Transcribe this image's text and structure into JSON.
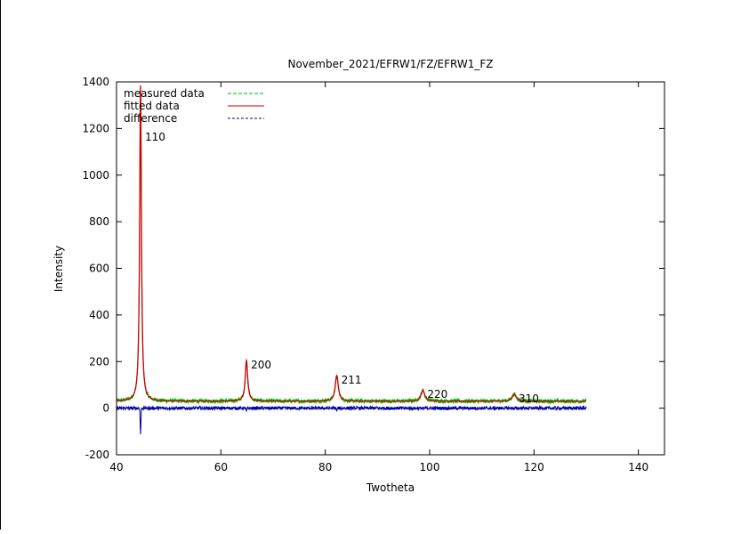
{
  "chart_data": {
    "type": "line",
    "title": "November_2021/EFRW1/FZ/EFRW1_FZ",
    "xlabel": "Twotheta",
    "ylabel": "Intensity",
    "xlim": [
      40,
      145
    ],
    "ylim": [
      -200,
      1400
    ],
    "xticks": [
      40,
      60,
      80,
      100,
      120,
      140
    ],
    "yticks": [
      -200,
      0,
      200,
      400,
      600,
      800,
      1000,
      1200,
      1400
    ],
    "grid": false,
    "legend_position": "top-left",
    "background_level": 30,
    "x_range": [
      40,
      130
    ],
    "series": [
      {
        "name": "measured data",
        "color": "#00bb00",
        "dash": "4,2",
        "noise": 9
      },
      {
        "name": "fitted data",
        "color": "#cc0000",
        "dash": "",
        "noise": 0
      },
      {
        "name": "difference",
        "color": "#0000aa",
        "dash": "3,2",
        "noise": 7
      }
    ],
    "peaks": [
      {
        "label": "110",
        "x": 44.6,
        "height": 1385
      },
      {
        "label": "200",
        "x": 64.9,
        "height": 205
      },
      {
        "label": "211",
        "x": 82.2,
        "height": 140
      },
      {
        "label": "220",
        "x": 98.7,
        "height": 78
      },
      {
        "label": "310",
        "x": 116.2,
        "height": 60
      }
    ]
  }
}
